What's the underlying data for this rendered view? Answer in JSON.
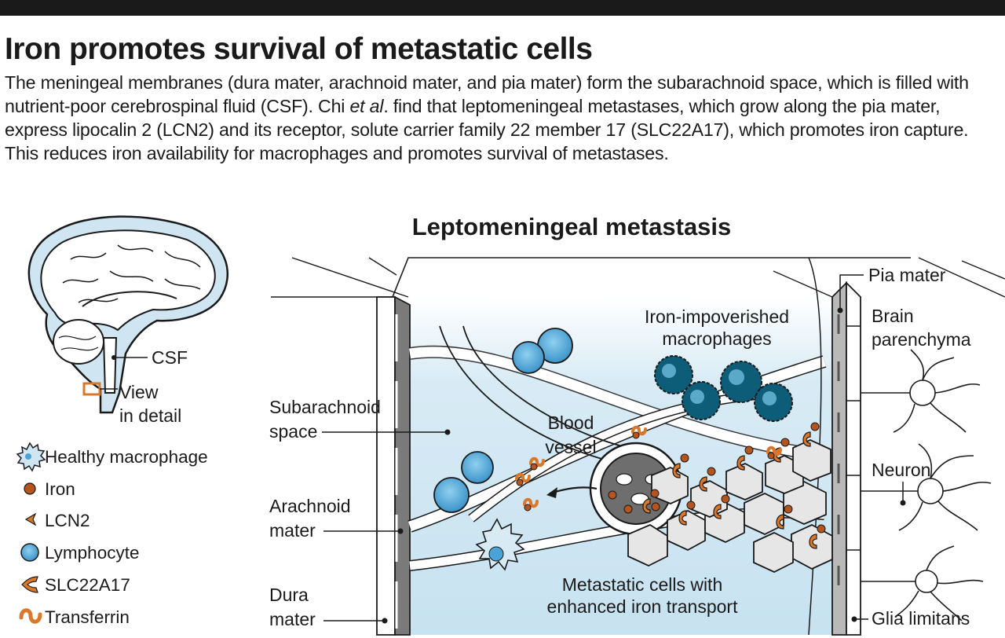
{
  "header": {
    "title": "Iron promotes survival of metastatic cells",
    "deck_1": "The meningeal membranes (dura mater, arachnoid mater, and pia mater) form the subarachnoid space, which is filled with nutrient-poor cerebrospinal fluid (CSF). Chi ",
    "deck_em": "et al",
    "deck_2": ". find that leptomeningeal metastases, which grow along the pia mater, express lipocalin 2 (LCN2) and its receptor, solute carrier family 22 member 17 (SLC22A17), which promotes iron capture. This reduces iron availability for macrophages and promotes survival of metastases."
  },
  "brain_inset": {
    "csf_label": "CSF",
    "view_label_1": "View",
    "view_label_2": "in detail"
  },
  "legend": [
    {
      "label": "Healthy macrophage",
      "icon": "healthy-macrophage-icon"
    },
    {
      "label": "Iron",
      "icon": "iron-icon"
    },
    {
      "label": "LCN2",
      "icon": "lcn2-icon"
    },
    {
      "label": "Lymphocyte",
      "icon": "lymphocyte-icon"
    },
    {
      "label": "SLC22A17",
      "icon": "slc22a17-icon"
    },
    {
      "label": "Transferrin",
      "icon": "transferrin-icon"
    }
  ],
  "panel": {
    "title": "Leptomeningeal metastasis",
    "subarachnoid_1": "Subarachnoid",
    "subarachnoid_2": "space",
    "arachnoid_1": "Arachnoid",
    "arachnoid_2": "mater",
    "dura_1": "Dura",
    "dura_2": "mater",
    "blood_1": "Blood",
    "blood_2": "vessel",
    "macro_1": "Iron-impoverished",
    "macro_2": "macrophages",
    "meta_1": "Metastatic cells with",
    "meta_2": "enhanced iron transport",
    "pia": "Pia mater",
    "brain_1": "Brain",
    "brain_2": "parenchyma",
    "neuron": "Neuron",
    "glia": "Glia limitans"
  },
  "colors": {
    "orange": "#d9782a",
    "iron": "#b5541c",
    "lymphocyte": "#4aa3d6",
    "macrophage_dark": "#0d5c78",
    "csf_blue": "#cfe6f2",
    "bar": "#1a1a1a"
  }
}
